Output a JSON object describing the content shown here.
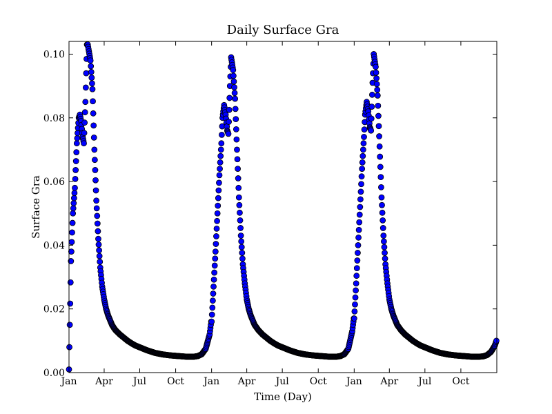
{
  "chart_data": {
    "type": "scatter",
    "title": "Daily Surface Gra",
    "xlabel": "Time (Day)",
    "ylabel": "Surface Gra",
    "ylim": [
      0.0,
      0.104
    ],
    "xlim_days": [
      0,
      1095
    ],
    "grid": false,
    "marker_color": "#0000ff",
    "marker_edge_color": "#000000",
    "x_ticks": [
      {
        "label": "Jan",
        "day": 0
      },
      {
        "label": "Apr",
        "day": 90
      },
      {
        "label": "Jul",
        "day": 181
      },
      {
        "label": "Oct",
        "day": 273
      },
      {
        "label": "Jan",
        "day": 365
      },
      {
        "label": "Apr",
        "day": 455
      },
      {
        "label": "Jul",
        "day": 546
      },
      {
        "label": "Oct",
        "day": 638
      },
      {
        "label": "Jan",
        "day": 730
      },
      {
        "label": "Apr",
        "day": 820
      },
      {
        "label": "Jul",
        "day": 911
      },
      {
        "label": "Oct",
        "day": 1003
      }
    ],
    "y_ticks": [
      {
        "label": "0.00",
        "value": 0.0
      },
      {
        "label": "0.02",
        "value": 0.02
      },
      {
        "label": "0.04",
        "value": 0.04
      },
      {
        "label": "0.06",
        "value": 0.06
      },
      {
        "label": "0.08",
        "value": 0.08
      },
      {
        "label": "0.10",
        "value": 0.1
      }
    ],
    "series": [
      {
        "yearly_profile": {
          "day": [
            0,
            2,
            5,
            10,
            15,
            20,
            25,
            28,
            31,
            35,
            38,
            42,
            46,
            48,
            55,
            60,
            65,
            70,
            75,
            80,
            85,
            90,
            95,
            100,
            105,
            110,
            115,
            120,
            130,
            140,
            150,
            160,
            170,
            180,
            200,
            220,
            240,
            260,
            280,
            300,
            320,
            330,
            340,
            350,
            360,
            364
          ],
          "value": [
            0.001,
            0.015,
            0.035,
            0.05,
            0.058,
            0.072,
            0.08,
            0.081,
            0.079,
            0.074,
            0.072,
            0.085,
            0.103,
            0.103,
            0.098,
            0.089,
            0.07,
            0.054,
            0.042,
            0.033,
            0.027,
            0.023,
            0.02,
            0.018,
            0.0165,
            0.015,
            0.014,
            0.0132,
            0.012,
            0.011,
            0.01,
            0.0092,
            0.0085,
            0.008,
            0.007,
            0.0062,
            0.0057,
            0.0054,
            0.0052,
            0.005,
            0.005,
            0.0052,
            0.0058,
            0.0075,
            0.012,
            0.016
          ]
        }
      },
      {
        "yearly_profile": {
          "day": [
            0,
            5,
            10,
            15,
            20,
            25,
            28,
            32,
            36,
            40,
            43,
            47,
            50,
            55,
            60,
            65,
            70,
            75,
            80,
            85,
            90,
            95,
            100,
            110,
            120,
            130,
            140,
            150,
            160,
            170,
            180,
            200,
            220,
            240,
            260,
            280,
            300,
            320,
            330,
            340,
            350,
            360,
            364
          ],
          "value": [
            0.016,
            0.027,
            0.038,
            0.05,
            0.062,
            0.072,
            0.08,
            0.084,
            0.081,
            0.076,
            0.075,
            0.09,
            0.099,
            0.095,
            0.086,
            0.07,
            0.055,
            0.043,
            0.034,
            0.028,
            0.023,
            0.02,
            0.018,
            0.015,
            0.0133,
            0.012,
            0.011,
            0.01,
            0.0092,
            0.0085,
            0.008,
            0.007,
            0.0062,
            0.0057,
            0.0054,
            0.0052,
            0.005,
            0.005,
            0.0052,
            0.0058,
            0.0075,
            0.013,
            0.017
          ]
        }
      },
      {
        "yearly_profile": {
          "day": [
            0,
            5,
            10,
            15,
            20,
            25,
            28,
            32,
            36,
            40,
            43,
            47,
            50,
            55,
            60,
            65,
            70,
            75,
            80,
            85,
            90,
            95,
            100,
            110,
            120,
            130,
            140,
            150,
            160,
            170,
            180,
            200,
            220,
            240,
            260,
            280,
            300,
            320,
            330,
            340,
            350,
            355,
            360,
            364
          ],
          "value": [
            0.017,
            0.028,
            0.04,
            0.052,
            0.064,
            0.074,
            0.081,
            0.085,
            0.082,
            0.077,
            0.076,
            0.091,
            0.1,
            0.096,
            0.087,
            0.071,
            0.055,
            0.043,
            0.034,
            0.028,
            0.023,
            0.02,
            0.018,
            0.015,
            0.0133,
            0.012,
            0.011,
            0.01,
            0.0092,
            0.0085,
            0.008,
            0.007,
            0.0062,
            0.0057,
            0.0054,
            0.0052,
            0.005,
            0.005,
            0.0051,
            0.0055,
            0.0065,
            0.0075,
            0.0085,
            0.01
          ]
        }
      }
    ]
  }
}
